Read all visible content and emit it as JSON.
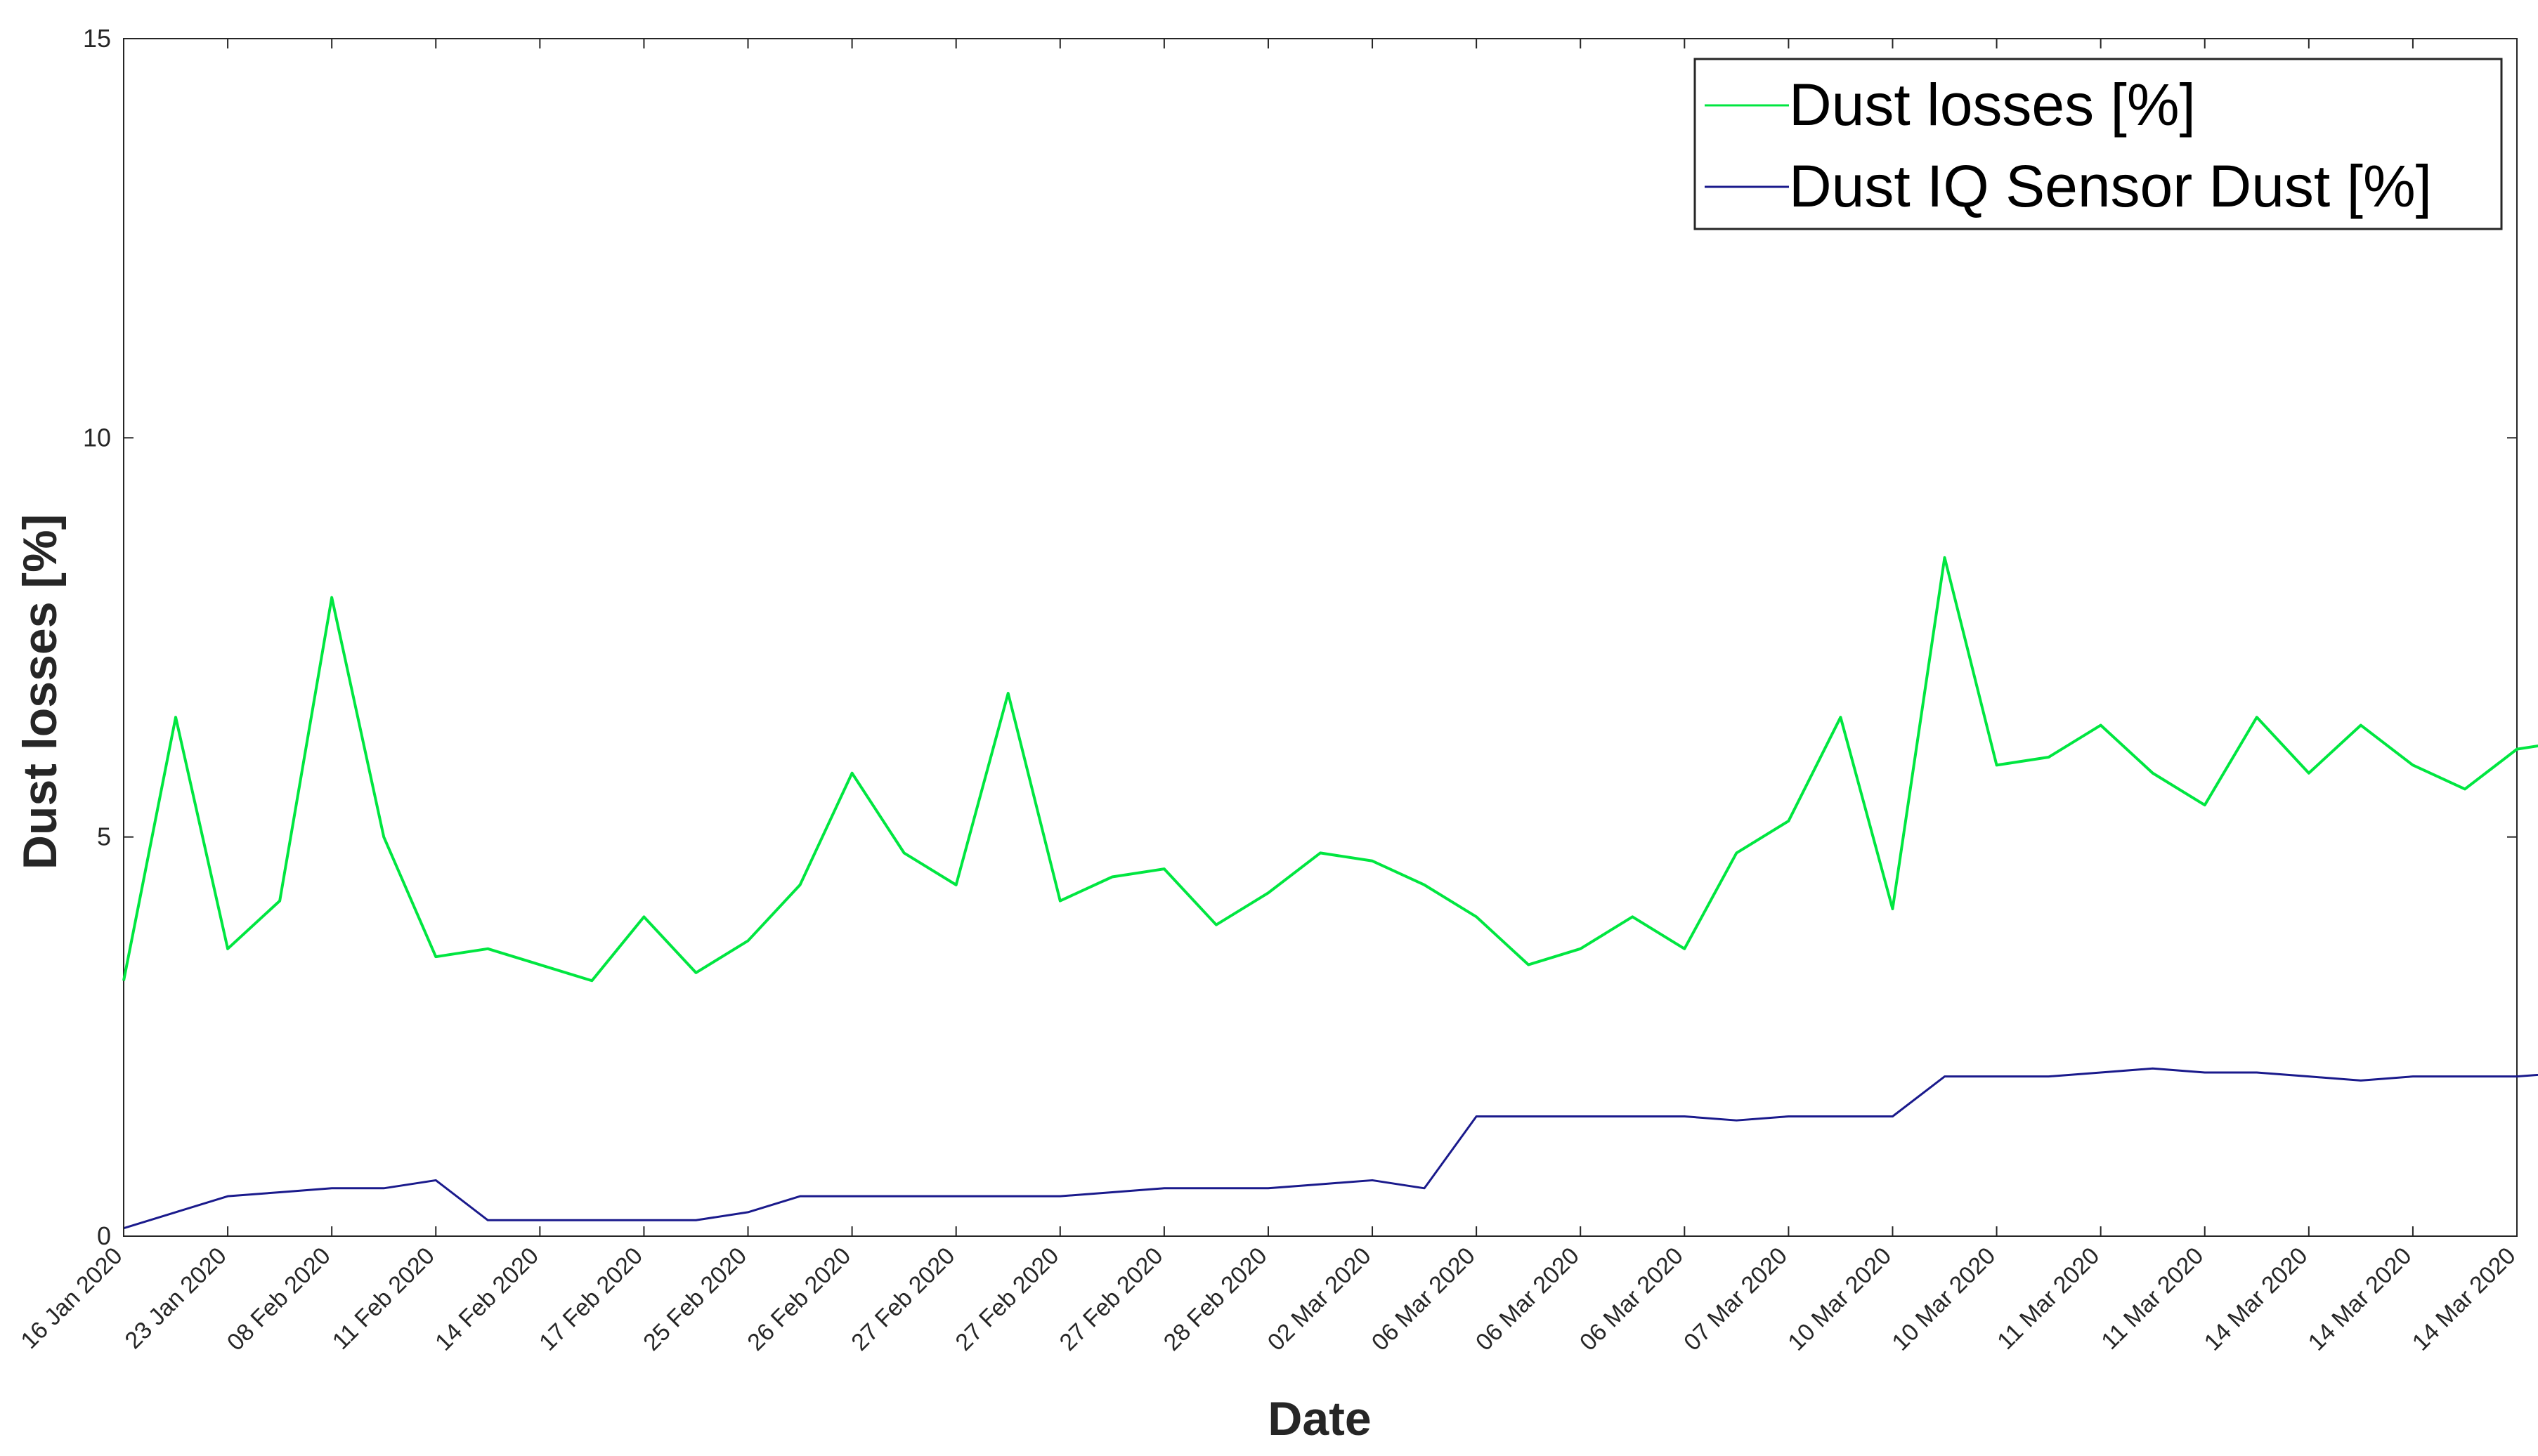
{
  "chart_data": {
    "type": "line",
    "title": "",
    "xlabel": "Date",
    "ylabel": "Dust losses [%]",
    "ylim": [
      0,
      15
    ],
    "yticks": [
      "0",
      "5",
      "10",
      "15"
    ],
    "x_tick_labels": [
      "16 Jan 2020",
      "23 Jan 2020",
      "08 Feb 2020",
      "11 Feb 2020",
      "14 Feb 2020",
      "17 Feb 2020",
      "25 Feb 2020",
      "26 Feb 2020",
      "27 Feb 2020",
      "27 Feb 2020",
      "27 Feb 2020",
      "28 Feb 2020",
      "02 Mar 2020",
      "06 Mar 2020",
      "06 Mar 2020",
      "06 Mar 2020",
      "07 Mar 2020",
      "10 Mar 2020",
      "10 Mar 2020",
      "11 Mar 2020",
      "11 Mar 2020",
      "14 Mar 2020",
      "14 Mar 2020",
      "14 Mar 2020"
    ],
    "grid": false,
    "legend_position": "top-right",
    "x_index": [
      0,
      0.5,
      1,
      1.5,
      2,
      2.5,
      3,
      3.5,
      4,
      4.5,
      5,
      5.5,
      6,
      6.5,
      7,
      7.5,
      8,
      8.5,
      9,
      9.5,
      10,
      10.5,
      11,
      11.5,
      12,
      12.5,
      13,
      13.5,
      14,
      14.5,
      15,
      15.5,
      16,
      16.5,
      17,
      17.5,
      18,
      18.5,
      19,
      19.5,
      20,
      20.5,
      21,
      21.5,
      22,
      22.5,
      23,
      23.5
    ],
    "series": [
      {
        "name": "Dust losses [%]",
        "color": "#00e640",
        "values": [
          3.2,
          6.5,
          3.6,
          4.2,
          8.0,
          5.0,
          3.5,
          3.6,
          3.4,
          3.2,
          4.0,
          3.3,
          3.7,
          4.4,
          5.8,
          4.8,
          4.4,
          6.8,
          4.2,
          4.5,
          4.6,
          3.9,
          4.3,
          4.8,
          4.7,
          4.4,
          4.0,
          3.4,
          3.6,
          4.0,
          3.6,
          4.8,
          5.2,
          6.5,
          4.1,
          8.5,
          5.9,
          6.0,
          6.4,
          5.8,
          5.4,
          6.5,
          5.8,
          6.4,
          5.9,
          5.6,
          6.1,
          6.2
        ]
      },
      {
        "name": "Dust IQ Sensor Dust [%]",
        "color": "#1a1a8c",
        "values": [
          0.1,
          0.3,
          0.5,
          0.55,
          0.6,
          0.6,
          0.7,
          0.2,
          0.2,
          0.2,
          0.2,
          0.2,
          0.3,
          0.5,
          0.5,
          0.5,
          0.5,
          0.5,
          0.5,
          0.55,
          0.6,
          0.6,
          0.6,
          0.65,
          0.7,
          0.6,
          1.5,
          1.5,
          1.5,
          1.5,
          1.5,
          1.45,
          1.5,
          1.5,
          1.5,
          2.0,
          2.0,
          2.0,
          2.05,
          2.1,
          2.05,
          2.05,
          2.0,
          1.95,
          2.0,
          2.0,
          2.0,
          2.05
        ]
      }
    ]
  }
}
